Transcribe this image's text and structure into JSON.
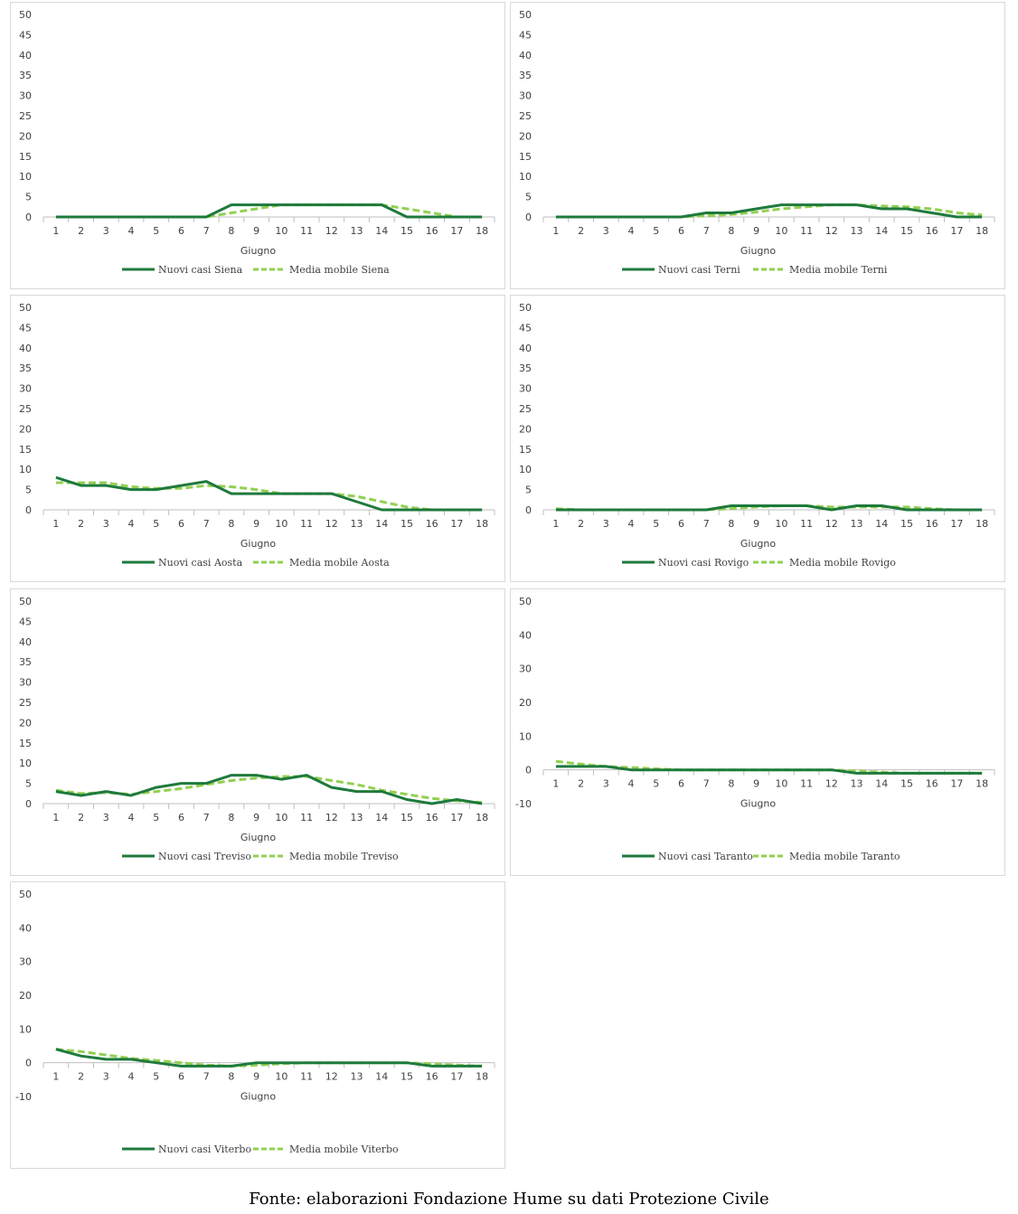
{
  "colors": {
    "nuovi": "#1e7a3c",
    "media": "#92d050",
    "axis": "#bfbfbf",
    "text": "#404040"
  },
  "footer": {
    "source": "Fonte: elaborazioni Fondazione Hume su dati Protezione Civile"
  },
  "chart_data": [
    {
      "type": "line",
      "city": "Siena",
      "xlabel": "Giugno",
      "x": [
        1,
        2,
        3,
        4,
        5,
        6,
        7,
        8,
        9,
        10,
        11,
        12,
        13,
        14,
        15,
        16,
        17,
        18
      ],
      "yticks": [
        0,
        5,
        10,
        15,
        20,
        25,
        30,
        35,
        40,
        45,
        50
      ],
      "ylim": [
        0,
        50
      ],
      "legend": "bottom",
      "series": [
        {
          "name": "Nuovi casi Siena",
          "style": "solid",
          "values": [
            0,
            0,
            0,
            0,
            0,
            0,
            0,
            3,
            3,
            3,
            3,
            3,
            3,
            3,
            0,
            0,
            0,
            0
          ]
        },
        {
          "name": "Media mobile Siena",
          "style": "dashed",
          "values": [
            0,
            0,
            0,
            0,
            0,
            0,
            0,
            1,
            2,
            3,
            3,
            3,
            3,
            3,
            2,
            1,
            0,
            0
          ]
        }
      ]
    },
    {
      "type": "line",
      "city": "Terni",
      "xlabel": "Giugno",
      "x": [
        1,
        2,
        3,
        4,
        5,
        6,
        7,
        8,
        9,
        10,
        11,
        12,
        13,
        14,
        15,
        16,
        17,
        18
      ],
      "yticks": [
        0,
        5,
        10,
        15,
        20,
        25,
        30,
        35,
        40,
        45,
        50
      ],
      "ylim": [
        0,
        50
      ],
      "legend": "bottom",
      "series": [
        {
          "name": "Nuovi casi Terni",
          "style": "solid",
          "values": [
            0,
            0,
            0,
            0,
            0,
            0,
            1,
            1,
            2,
            3,
            3,
            3,
            3,
            2,
            2,
            1,
            0,
            0
          ]
        },
        {
          "name": "Media mobile Terni",
          "style": "dashed",
          "values": [
            0,
            0,
            0,
            0,
            0,
            0,
            0.3,
            0.6,
            1.2,
            2,
            2.5,
            3,
            3,
            2.7,
            2.5,
            2,
            1,
            0.5
          ]
        }
      ]
    },
    {
      "type": "line",
      "city": "Aosta",
      "xlabel": "Giugno",
      "x": [
        1,
        2,
        3,
        4,
        5,
        6,
        7,
        8,
        9,
        10,
        11,
        12,
        13,
        14,
        15,
        16,
        17,
        18
      ],
      "yticks": [
        0,
        5,
        10,
        15,
        20,
        25,
        30,
        35,
        40,
        45,
        50
      ],
      "ylim": [
        0,
        50
      ],
      "legend": "bottom",
      "series": [
        {
          "name": "Nuovi casi Aosta",
          "style": "solid",
          "values": [
            8,
            6,
            6,
            5,
            5,
            6,
            7,
            4,
            4,
            4,
            4,
            4,
            2,
            0,
            0,
            0,
            0,
            0
          ]
        },
        {
          "name": "Media mobile Aosta",
          "style": "dashed",
          "values": [
            6.7,
            6.7,
            6.7,
            5.7,
            5.3,
            5.3,
            6,
            5.7,
            5,
            4,
            4,
            4,
            3.3,
            2,
            0.7,
            0,
            0,
            0
          ]
        }
      ]
    },
    {
      "type": "line",
      "city": "Rovigo",
      "xlabel": "Giugno",
      "x": [
        1,
        2,
        3,
        4,
        5,
        6,
        7,
        8,
        9,
        10,
        11,
        12,
        13,
        14,
        15,
        16,
        17,
        18
      ],
      "yticks": [
        0,
        5,
        10,
        15,
        20,
        25,
        30,
        35,
        40,
        45,
        50
      ],
      "ylim": [
        0,
        50
      ],
      "legend": "bottom",
      "series": [
        {
          "name": "Nuovi casi Rovigo",
          "style": "solid",
          "values": [
            0,
            0,
            0,
            0,
            0,
            0,
            0,
            1,
            1,
            1,
            1,
            0,
            1,
            1,
            0,
            0,
            0,
            0
          ]
        },
        {
          "name": "Media mobile Rovigo",
          "style": "dashed",
          "values": [
            0.3,
            0,
            0,
            0,
            0,
            0,
            0,
            0.3,
            0.7,
            1,
            1,
            0.7,
            0.7,
            0.7,
            0.7,
            0.3,
            0,
            0
          ]
        }
      ]
    },
    {
      "type": "line",
      "city": "Treviso",
      "xlabel": "Giugno",
      "x": [
        1,
        2,
        3,
        4,
        5,
        6,
        7,
        8,
        9,
        10,
        11,
        12,
        13,
        14,
        15,
        16,
        17,
        18
      ],
      "yticks": [
        0,
        5,
        10,
        15,
        20,
        25,
        30,
        35,
        40,
        45,
        50
      ],
      "ylim": [
        0,
        50
      ],
      "legend": "bottom",
      "series": [
        {
          "name": "Nuovi casi Treviso",
          "style": "solid",
          "values": [
            3,
            2,
            3,
            2,
            4,
            5,
            5,
            7,
            7,
            6,
            7,
            4,
            3,
            3,
            1,
            0,
            1,
            0
          ]
        },
        {
          "name": "Media mobile Treviso",
          "style": "dashed",
          "values": [
            3.3,
            2.5,
            2.7,
            2.3,
            3,
            3.7,
            4.7,
            5.7,
            6.3,
            6.7,
            6.7,
            5.7,
            4.7,
            3.3,
            2.3,
            1.3,
            0.7,
            0.3
          ]
        }
      ]
    },
    {
      "type": "line",
      "city": "Taranto",
      "xlabel": "Giugno",
      "x": [
        1,
        2,
        3,
        4,
        5,
        6,
        7,
        8,
        9,
        10,
        11,
        12,
        13,
        14,
        15,
        16,
        17,
        18
      ],
      "yticks": [
        -10,
        0,
        10,
        20,
        30,
        40,
        50
      ],
      "ylim": [
        -10,
        50
      ],
      "legend": "bottom",
      "series": [
        {
          "name": "Nuovi casi Taranto",
          "style": "solid",
          "values": [
            1,
            1,
            1,
            0,
            0,
            0,
            0,
            0,
            0,
            0,
            0,
            0,
            -1,
            -1,
            -1,
            -1,
            -1,
            -1
          ]
        },
        {
          "name": "Media mobile Taranto",
          "style": "dashed",
          "values": [
            2.5,
            1.7,
            1,
            0.7,
            0.3,
            0,
            0,
            0,
            0,
            0,
            0,
            0,
            -0.3,
            -0.7,
            -1,
            -1,
            -1,
            -1
          ]
        }
      ]
    },
    {
      "type": "line",
      "city": "Viterbo",
      "xlabel": "Giugno",
      "x": [
        1,
        2,
        3,
        4,
        5,
        6,
        7,
        8,
        9,
        10,
        11,
        12,
        13,
        14,
        15,
        16,
        17,
        18
      ],
      "yticks": [
        -10,
        0,
        10,
        20,
        30,
        40,
        50
      ],
      "ylim": [
        -10,
        50
      ],
      "legend": "bottom",
      "series": [
        {
          "name": "Nuovi casi Viterbo",
          "style": "solid",
          "values": [
            4,
            2,
            1,
            1,
            0,
            -1,
            -1,
            -1,
            0,
            0,
            0,
            0,
            0,
            0,
            0,
            -1,
            -1,
            -1
          ]
        },
        {
          "name": "Media mobile Viterbo",
          "style": "dashed",
          "values": [
            4,
            3.3,
            2.3,
            1.3,
            0.7,
            0,
            -0.7,
            -1,
            -0.7,
            -0.3,
            0,
            0,
            0,
            0,
            0,
            -0.3,
            -0.7,
            -1
          ]
        }
      ]
    }
  ]
}
